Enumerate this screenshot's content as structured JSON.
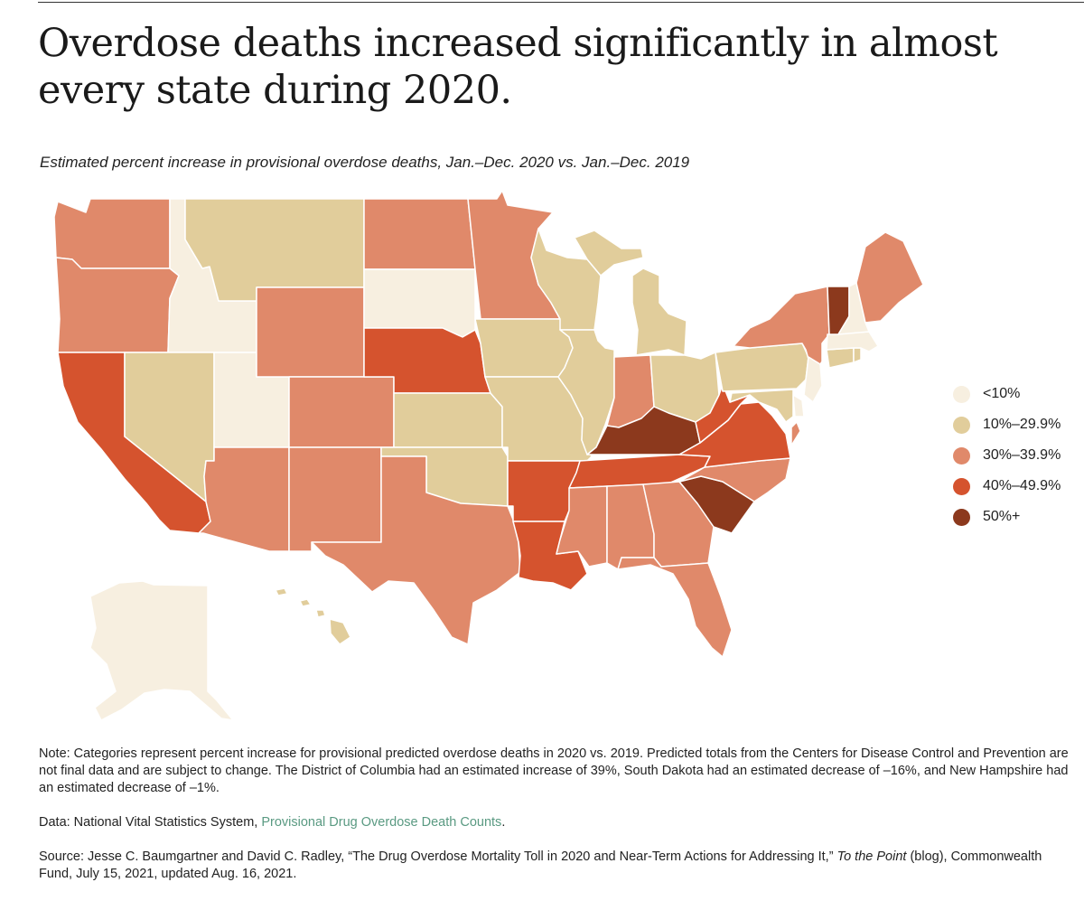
{
  "title": "Overdose deaths increased significantly in almost every state during 2020.",
  "subtitle": "Estimated percent increase in provisional overdose deaths, Jan.–Dec. 2020 vs. Jan.–Dec. 2019",
  "legend": [
    {
      "label": "<10%",
      "color": "#f7efe0",
      "key": "lt10"
    },
    {
      "label": "10%–29.9%",
      "color": "#e1cd9b",
      "key": "c10"
    },
    {
      "label": "30%–39.9%",
      "color": "#e0896a",
      "key": "c30"
    },
    {
      "label": "40%–49.9%",
      "color": "#d5532e",
      "key": "c40"
    },
    {
      "label": "50%+",
      "color": "#8c391d",
      "key": "c50"
    }
  ],
  "chart_data": {
    "type": "choropleth",
    "title": "Overdose deaths increased significantly in almost every state during 2020.",
    "subtitle": "Estimated percent increase in provisional overdose deaths, Jan.–Dec. 2020 vs. Jan.–Dec. 2019",
    "categories": [
      "<10%",
      "10%–29.9%",
      "30%–39.9%",
      "40%–49.9%",
      "50%+"
    ],
    "states": {
      "WA": "30%–39.9%",
      "OR": "30%–39.9%",
      "CA": "40%–49.9%",
      "ID": "<10%",
      "NV": "10%–29.9%",
      "UT": "<10%",
      "AZ": "30%–39.9%",
      "MT": "10%–29.9%",
      "WY": "30%–39.9%",
      "CO": "30%–39.9%",
      "NM": "30%–39.9%",
      "ND": "30%–39.9%",
      "SD": "<10%",
      "NE": "40%–49.9%",
      "KS": "10%–29.9%",
      "OK": "10%–29.9%",
      "TX": "30%–39.9%",
      "MN": "30%–39.9%",
      "IA": "10%–29.9%",
      "MO": "10%–29.9%",
      "AR": "40%–49.9%",
      "LA": "40%–49.9%",
      "WI": "10%–29.9%",
      "IL": "10%–29.9%",
      "MI": "10%–29.9%",
      "IN": "30%–39.9%",
      "OH": "10%–29.9%",
      "KY": "50%+",
      "TN": "40%–49.9%",
      "MS": "30%–39.9%",
      "AL": "30%–39.9%",
      "GA": "30%–39.9%",
      "FL": "30%–39.9%",
      "SC": "50%+",
      "NC": "30%–39.9%",
      "VA": "40%–49.9%",
      "WV": "40%–49.9%",
      "PA": "10%–29.9%",
      "NY": "30%–39.9%",
      "VT": "50%+",
      "NH": "<10%",
      "ME": "30%–39.9%",
      "MA": "<10%",
      "RI": "10%–29.9%",
      "CT": "10%–29.9%",
      "NJ": "<10%",
      "DE": "<10%",
      "MD": "10%–29.9%",
      "DC": "30%–39.9%",
      "AK": "<10%",
      "HI": "10%–29.9%"
    }
  },
  "notes": {
    "note": "Note: Categories represent percent increase for provisional predicted overdose deaths in 2020 vs. 2019. Predicted totals from the Centers for Disease Control and Prevention are not final data and are subject to change. The District of Columbia had an estimated increase of 39%, South Dakota had an estimated decrease of –16%, and New Hampshire had an estimated decrease of –1%.",
    "data_prefix": "Data: National Vital Statistics System, ",
    "data_link": "Provisional Drug Overdose Death Counts",
    "data_suffix": ".",
    "source_prefix": "Source: Jesse C. Baumgartner and David C. Radley, “The Drug Overdose Mortality Toll in 2020 and Near-Term Actions for Addressing It,” ",
    "source_italic": "To the Point",
    "source_suffix": " (blog), Commonwealth Fund, July 15, 2021, updated Aug. 16, 2021."
  }
}
